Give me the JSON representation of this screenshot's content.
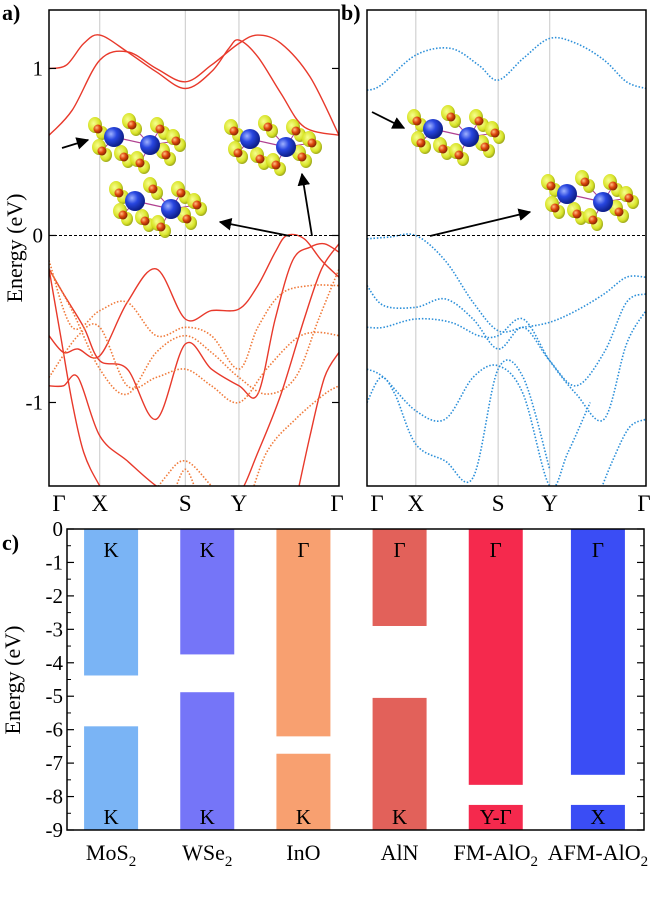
{
  "chart_data": [
    {
      "panel_label": "a)",
      "type": "line",
      "ylabel": "Energy (eV)",
      "ylim": [
        -1.5,
        1.35
      ],
      "yticks": [
        1,
        0,
        -1
      ],
      "ytick_labels": [
        "1",
        "0",
        "-1"
      ],
      "kpoints": [
        "Γ",
        "X",
        "S",
        "Y",
        "Γ"
      ],
      "kpos": [
        0,
        0.175,
        0.47,
        0.655,
        1.0
      ],
      "fermi_level": 0,
      "color": "#e8392b",
      "dotted_color": "#f07a3a",
      "series": [
        {
          "name": "conduction-1",
          "style": "solid",
          "x": [
            0,
            0.08,
            0.175,
            0.27,
            0.37,
            0.47,
            0.56,
            0.655,
            0.72,
            0.8,
            0.9,
            1.0
          ],
          "y": [
            0.6,
            0.75,
            1.05,
            1.1,
            1.0,
            0.92,
            1.02,
            1.15,
            1.2,
            1.15,
            0.95,
            0.6
          ]
        },
        {
          "name": "conduction-2",
          "style": "solid",
          "x": [
            0,
            0.06,
            0.12,
            0.175,
            0.27,
            0.37,
            0.47,
            0.56,
            0.62,
            0.655,
            0.72,
            0.8,
            0.88,
            1.0
          ],
          "y": [
            1.0,
            1.02,
            1.15,
            1.2,
            1.1,
            0.98,
            0.88,
            0.98,
            1.12,
            1.17,
            1.07,
            0.85,
            0.65,
            0.6
          ]
        },
        {
          "name": "valence-top",
          "style": "solid",
          "x": [
            0,
            0.05,
            0.1,
            0.175,
            0.27,
            0.37,
            0.47,
            0.56,
            0.655,
            0.72,
            0.78,
            0.82,
            0.88,
            0.94,
            1.0
          ],
          "y": [
            -0.6,
            -0.7,
            -0.68,
            -0.72,
            -0.4,
            -0.2,
            -0.5,
            -0.45,
            -0.44,
            -0.3,
            -0.1,
            0,
            -0.02,
            -0.15,
            -0.25
          ]
        },
        {
          "name": "valence-2",
          "style": "solid",
          "x": [
            0,
            0.05,
            0.12,
            0.175,
            0.27,
            0.37,
            0.47,
            0.56,
            0.655,
            0.72,
            0.78,
            0.84,
            0.9,
            0.95,
            1.0
          ],
          "y": [
            -0.2,
            -0.35,
            -0.55,
            -0.75,
            -0.8,
            -1.1,
            -0.65,
            -0.8,
            -0.9,
            -0.95,
            -0.5,
            -0.15,
            -0.07,
            -0.05,
            -0.1
          ]
        },
        {
          "name": "valence-3",
          "style": "solid",
          "x": [
            0,
            0.05,
            0.1,
            0.175,
            0.27,
            0.37,
            0.47,
            0.56,
            0.655,
            0.72,
            0.8,
            0.88,
            0.94,
            1.0
          ],
          "y": [
            -0.9,
            -0.9,
            -0.85,
            -1.2,
            -1.35,
            -1.5,
            -1.6,
            -1.7,
            -1.55,
            -1.3,
            -0.95,
            -0.5,
            -0.2,
            -0.05
          ]
        },
        {
          "name": "valence-4",
          "style": "solid",
          "x": [
            0,
            0.04,
            0.08,
            0.12,
            0.175,
            0.25
          ],
          "y": [
            -0.2,
            -0.6,
            -1.0,
            -1.3,
            -1.5,
            -1.7
          ]
        },
        {
          "name": "valence-5",
          "style": "solid",
          "x": [
            0.85,
            0.9,
            0.95,
            1.0
          ],
          "y": [
            -1.6,
            -1.2,
            -0.85,
            -0.7
          ]
        },
        {
          "name": "dotted-1",
          "style": "dotted",
          "x": [
            0,
            0.08,
            0.175,
            0.27,
            0.37,
            0.47,
            0.56,
            0.655,
            0.72,
            0.8,
            0.9,
            1.0
          ],
          "y": [
            -0.15,
            -0.55,
            -0.45,
            -0.4,
            -0.6,
            -0.55,
            -0.6,
            -0.8,
            -0.55,
            -0.35,
            -0.3,
            -0.3
          ]
        },
        {
          "name": "dotted-2",
          "style": "dotted",
          "x": [
            0,
            0.08,
            0.175,
            0.27,
            0.37,
            0.47,
            0.56,
            0.655,
            0.75,
            0.85,
            0.93,
            1.0
          ],
          "y": [
            -0.2,
            -0.45,
            -0.8,
            -0.95,
            -0.7,
            -0.6,
            -0.7,
            -0.85,
            -0.95,
            -0.85,
            -0.5,
            -0.2
          ]
        },
        {
          "name": "dotted-3",
          "style": "dotted",
          "x": [
            0,
            0.1,
            0.175,
            0.27,
            0.37,
            0.47,
            0.56,
            0.655,
            0.75,
            0.85,
            0.92,
            1.0
          ],
          "y": [
            -0.85,
            -0.6,
            -0.55,
            -0.9,
            -0.85,
            -0.8,
            -0.9,
            -1.0,
            -0.8,
            -0.62,
            -0.58,
            -0.6
          ]
        },
        {
          "name": "dotted-4",
          "style": "dotted",
          "x": [
            0.3,
            0.4,
            0.47,
            0.56,
            0.655,
            0.75,
            0.85,
            0.95,
            1.0
          ],
          "y": [
            -1.7,
            -1.45,
            -1.35,
            -1.5,
            -1.7,
            -1.3,
            -1.1,
            -0.95,
            -0.9
          ]
        },
        {
          "name": "dotted-5",
          "style": "dotted",
          "x": [
            0.42,
            0.47,
            0.52
          ],
          "y": [
            -1.6,
            -1.4,
            -1.6
          ]
        }
      ]
    },
    {
      "panel_label": "b)",
      "type": "line",
      "ylim": [
        -1.5,
        1.35
      ],
      "kpoints": [
        "Γ",
        "X",
        "S",
        "Y",
        "Γ"
      ],
      "kpos": [
        0,
        0.175,
        0.47,
        0.655,
        1.0
      ],
      "fermi_level": 0,
      "color": "#2b8fd9",
      "series": [
        {
          "name": "conduction",
          "style": "dotted",
          "x": [
            0,
            0.05,
            0.175,
            0.3,
            0.4,
            0.47,
            0.56,
            0.655,
            0.75,
            0.85,
            0.93,
            1.0
          ],
          "y": [
            0.87,
            0.9,
            1.08,
            1.12,
            1.02,
            0.93,
            1.06,
            1.18,
            1.15,
            1.05,
            0.92,
            0.88
          ]
        },
        {
          "name": "valence-top",
          "style": "dotted",
          "x": [
            0,
            0.08,
            0.175,
            0.28,
            0.38,
            0.47,
            0.56,
            0.655,
            0.75,
            0.85,
            0.93,
            1.0
          ],
          "y": [
            -0.02,
            -0.01,
            0.0,
            -0.15,
            -0.4,
            -0.57,
            -0.55,
            -0.52,
            -0.45,
            -0.35,
            -0.25,
            -0.25
          ]
        },
        {
          "name": "valence-2",
          "style": "dotted",
          "x": [
            0,
            0.06,
            0.175,
            0.28,
            0.38,
            0.47,
            0.56,
            0.655,
            0.75,
            0.85,
            0.93,
            1.0
          ],
          "y": [
            -0.3,
            -0.42,
            -0.43,
            -0.38,
            -0.5,
            -0.68,
            -0.55,
            -0.75,
            -0.9,
            -0.7,
            -0.4,
            -0.35
          ]
        },
        {
          "name": "valence-3",
          "style": "dotted",
          "x": [
            0,
            0.06,
            0.175,
            0.3,
            0.4,
            0.47,
            0.56,
            0.655,
            0.75,
            0.85,
            0.93,
            1.0
          ],
          "y": [
            -0.55,
            -0.55,
            -0.5,
            -0.52,
            -0.6,
            -0.6,
            -0.5,
            -0.75,
            -0.95,
            -1.1,
            -0.65,
            -0.45
          ]
        },
        {
          "name": "valence-4",
          "style": "dotted",
          "x": [
            0,
            0.06,
            0.175,
            0.28,
            0.38,
            0.47,
            0.56,
            0.655,
            0.72,
            0.8
          ],
          "y": [
            -0.8,
            -0.85,
            -1.05,
            -1.1,
            -0.85,
            -0.78,
            -0.95,
            -1.5,
            -1.3,
            -1.0
          ]
        },
        {
          "name": "valence-5",
          "style": "dotted",
          "x": [
            0,
            0.05,
            0.1,
            0.175,
            0.28,
            0.38,
            0.47,
            0.56,
            0.655
          ],
          "y": [
            -1.0,
            -0.85,
            -0.95,
            -1.25,
            -1.35,
            -1.45,
            -0.8,
            -0.85,
            -1.4
          ]
        },
        {
          "name": "valence-6",
          "style": "dotted",
          "x": [
            0.82,
            0.88,
            0.94,
            1.0
          ],
          "y": [
            -1.6,
            -1.35,
            -1.15,
            -1.1
          ]
        }
      ]
    },
    {
      "panel_label": "c)",
      "type": "bar",
      "ylabel": "Energy (eV)",
      "ylim": [
        -9,
        0
      ],
      "yticks": [
        0,
        -1,
        -2,
        -3,
        -4,
        -5,
        -6,
        -7,
        -8,
        -9
      ],
      "ytick_labels": [
        "0",
        "-1",
        "-2",
        "-3",
        "-4",
        "-5",
        "-6",
        "-7",
        "-8",
        "-9"
      ],
      "materials": [
        {
          "name": "MoS",
          "sub": "2",
          "color": "#7ab4f5",
          "upper": [
            -4.38,
            0
          ],
          "lower": [
            -9,
            -5.9
          ],
          "upper_label": "K",
          "lower_label": "K"
        },
        {
          "name": "WSe",
          "sub": "2",
          "color": "#7575f8",
          "upper": [
            -3.75,
            0
          ],
          "lower": [
            -9,
            -4.88
          ],
          "upper_label": "K",
          "lower_label": "K"
        },
        {
          "name": "InO",
          "sub": "",
          "color": "#f8a070",
          "upper": [
            -6.2,
            0
          ],
          "lower": [
            -9,
            -6.72
          ],
          "upper_label": "Γ",
          "lower_label": "K"
        },
        {
          "name": "AlN",
          "sub": "",
          "color": "#e2615a",
          "upper": [
            -2.9,
            0
          ],
          "lower": [
            -9,
            -5.05
          ],
          "upper_label": "Γ",
          "lower_label": "K"
        },
        {
          "name": "FM-AlO",
          "sub": "2",
          "color": "#f5294d",
          "upper": [
            -7.65,
            0
          ],
          "lower": [
            -9,
            -8.25
          ],
          "upper_label": "Γ",
          "lower_label": "Y-Γ"
        },
        {
          "name": "AFM-AlO",
          "sub": "2",
          "color": "#3a4df5",
          "upper": [
            -7.35,
            0
          ],
          "lower": [
            -9,
            -8.25
          ],
          "upper_label": "Γ",
          "lower_label": "X"
        }
      ]
    }
  ]
}
